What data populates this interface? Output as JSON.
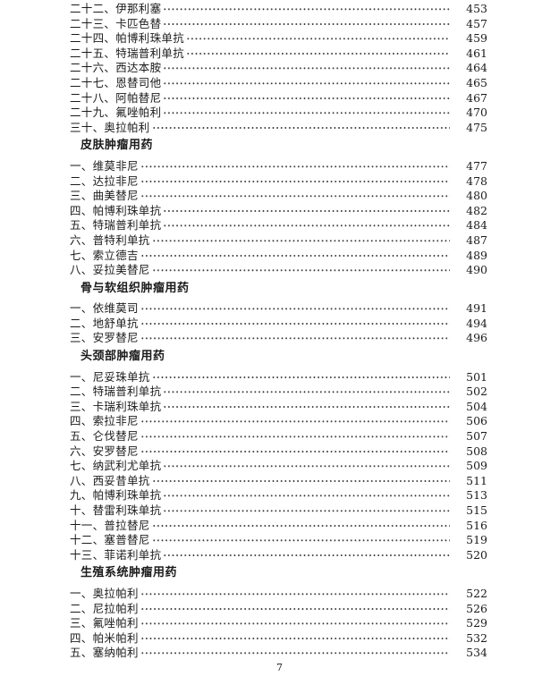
{
  "page": {
    "footer_page_number": "7"
  },
  "colors": {
    "background": "#ffffff",
    "text": "#1b1b1b",
    "dot_leader": "#3a3a3a"
  },
  "toc": {
    "sections": [
      {
        "heading": null,
        "items": [
          {
            "label": "二十二、伊那利塞",
            "page": "453"
          },
          {
            "label": "二十三、卡匹色替",
            "page": "457"
          },
          {
            "label": "二十四、帕博利珠单抗",
            "page": "459"
          },
          {
            "label": "二十五、特瑞普利单抗",
            "page": "461"
          },
          {
            "label": "二十六、西达本胺",
            "page": "464"
          },
          {
            "label": "二十七、恩替司他",
            "page": "465"
          },
          {
            "label": "二十八、阿帕替尼",
            "page": "467"
          },
          {
            "label": "二十九、氟唑帕利",
            "page": "470"
          },
          {
            "label": "三十、奥拉帕利",
            "page": "475"
          }
        ]
      },
      {
        "heading": "皮肤肿瘤用药",
        "items": [
          {
            "label": "一、维莫非尼",
            "page": "477"
          },
          {
            "label": "二、达拉非尼",
            "page": "478"
          },
          {
            "label": "三、曲美替尼",
            "page": "480"
          },
          {
            "label": "四、帕博利珠单抗",
            "page": "482"
          },
          {
            "label": "五、特瑞普利单抗",
            "page": "484"
          },
          {
            "label": "六、普特利单抗",
            "page": "487"
          },
          {
            "label": "七、索立德吉",
            "page": "489"
          },
          {
            "label": "八、妥拉美替尼",
            "page": "490"
          }
        ]
      },
      {
        "heading": "骨与软组织肿瘤用药",
        "items": [
          {
            "label": "一、依维莫司",
            "page": "491"
          },
          {
            "label": "二、地舒单抗",
            "page": "494"
          },
          {
            "label": "三、安罗替尼",
            "page": "496"
          }
        ]
      },
      {
        "heading": "头颈部肿瘤用药",
        "items": [
          {
            "label": "一、尼妥珠单抗",
            "page": "501"
          },
          {
            "label": "二、特瑞普利单抗",
            "page": "502"
          },
          {
            "label": "三、卡瑞利珠单抗",
            "page": "504"
          },
          {
            "label": "四、索拉非尼",
            "page": "506"
          },
          {
            "label": "五、仑伐替尼",
            "page": "507"
          },
          {
            "label": "六、安罗替尼",
            "page": "508"
          },
          {
            "label": "七、纳武利尤单抗",
            "page": "509"
          },
          {
            "label": "八、西妥昔单抗",
            "page": "511"
          },
          {
            "label": "九、帕博利珠单抗",
            "page": "513"
          },
          {
            "label": "十、替雷利珠单抗",
            "page": "515"
          },
          {
            "label": "十一、普拉替尼",
            "page": "516"
          },
          {
            "label": "十二、塞普替尼",
            "page": "519"
          },
          {
            "label": "十三、菲诺利单抗",
            "page": "520"
          }
        ]
      },
      {
        "heading": "生殖系统肿瘤用药",
        "items": [
          {
            "label": "一、奥拉帕利",
            "page": "522"
          },
          {
            "label": "二、尼拉帕利",
            "page": "526"
          },
          {
            "label": "三、氟唑帕利",
            "page": "529"
          },
          {
            "label": "四、帕米帕利",
            "page": "532"
          },
          {
            "label": "五、塞纳帕利",
            "page": "534"
          }
        ]
      }
    ]
  }
}
